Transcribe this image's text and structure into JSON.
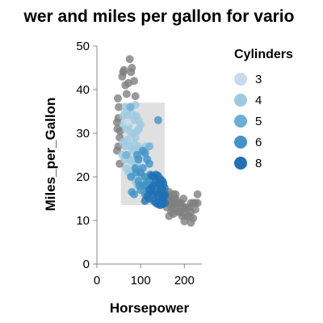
{
  "chart_data": {
    "type": "scatter",
    "title": "wer and miles per gallon for vario",
    "xlabel": "Horsepower",
    "ylabel": "Miles_per_Gallon",
    "xlim": [
      0,
      240
    ],
    "ylim": [
      0,
      50
    ],
    "xticks": [
      "0",
      "100",
      "200"
    ],
    "yticks": [
      "0",
      "10",
      "20",
      "30",
      "40",
      "50"
    ],
    "grid": false,
    "legend": {
      "title": "Cylinders",
      "placement": "right",
      "items": [
        {
          "label": "3",
          "color": "#c6dbef"
        },
        {
          "label": "4",
          "color": "#9ecae1"
        },
        {
          "label": "5",
          "color": "#6baed6"
        },
        {
          "label": "6",
          "color": "#4292c6"
        },
        {
          "label": "8",
          "color": "#2171b5"
        }
      ]
    },
    "brush_selection": {
      "x": [
        55,
        155
      ],
      "y": [
        13.5,
        37
      ],
      "color": "#e0e0e0"
    },
    "unselected_color": "#7f7f7f",
    "point_opacity": 0.8,
    "points": [
      {
        "x": 60,
        "y": 44,
        "c": 4
      },
      {
        "x": 58,
        "y": 43,
        "c": 4
      },
      {
        "x": 62,
        "y": 44.5,
        "c": 4
      },
      {
        "x": 75,
        "y": 47,
        "c": 4
      },
      {
        "x": 78,
        "y": 44,
        "c": 4
      },
      {
        "x": 80,
        "y": 45,
        "c": 4
      },
      {
        "x": 65,
        "y": 41,
        "c": 4
      },
      {
        "x": 72,
        "y": 41.5,
        "c": 4
      },
      {
        "x": 68,
        "y": 39,
        "c": 4
      },
      {
        "x": 88,
        "y": 38.5,
        "c": 4
      },
      {
        "x": 85,
        "y": 42,
        "c": 4
      },
      {
        "x": 48,
        "y": 38,
        "c": 4
      },
      {
        "x": 50,
        "y": 36,
        "c": 4
      },
      {
        "x": 46,
        "y": 32.5,
        "c": 4
      },
      {
        "x": 47,
        "y": 31,
        "c": 4
      },
      {
        "x": 49,
        "y": 33.5,
        "c": 4
      },
      {
        "x": 52,
        "y": 29,
        "c": 4
      },
      {
        "x": 49,
        "y": 27,
        "c": 4
      },
      {
        "x": 46,
        "y": 26,
        "c": 4
      },
      {
        "x": 52,
        "y": 23,
        "c": 4
      },
      {
        "x": 53,
        "y": 30.5,
        "c": 4
      },
      {
        "x": 65,
        "y": 36,
        "c": 4
      },
      {
        "x": 68,
        "y": 35,
        "c": 4
      },
      {
        "x": 70,
        "y": 34,
        "c": 4
      },
      {
        "x": 60,
        "y": 34,
        "c": 4
      },
      {
        "x": 62,
        "y": 32,
        "c": 4
      },
      {
        "x": 75,
        "y": 36,
        "c": 4
      },
      {
        "x": 80,
        "y": 34.5,
        "c": 4
      },
      {
        "x": 85,
        "y": 33,
        "c": 4
      },
      {
        "x": 88,
        "y": 36.5,
        "c": 4
      },
      {
        "x": 90,
        "y": 34,
        "c": 4
      },
      {
        "x": 95,
        "y": 33,
        "c": 4
      },
      {
        "x": 67,
        "y": 31,
        "c": 4
      },
      {
        "x": 72,
        "y": 31.5,
        "c": 4
      },
      {
        "x": 78,
        "y": 30,
        "c": 4
      },
      {
        "x": 84,
        "y": 30,
        "c": 4
      },
      {
        "x": 88,
        "y": 29,
        "c": 4
      },
      {
        "x": 92,
        "y": 30.5,
        "c": 4
      },
      {
        "x": 96,
        "y": 31,
        "c": 4
      },
      {
        "x": 100,
        "y": 32,
        "c": 4
      },
      {
        "x": 60,
        "y": 28,
        "c": 4
      },
      {
        "x": 65,
        "y": 27,
        "c": 4
      },
      {
        "x": 70,
        "y": 28.5,
        "c": 4
      },
      {
        "x": 76,
        "y": 27,
        "c": 4
      },
      {
        "x": 82,
        "y": 26,
        "c": 4
      },
      {
        "x": 86,
        "y": 27.5,
        "c": 4
      },
      {
        "x": 90,
        "y": 26,
        "c": 4
      },
      {
        "x": 95,
        "y": 27,
        "c": 4
      },
      {
        "x": 100,
        "y": 26,
        "c": 4
      },
      {
        "x": 58,
        "y": 25,
        "c": 4
      },
      {
        "x": 63,
        "y": 24,
        "c": 4
      },
      {
        "x": 69,
        "y": 25,
        "c": 4
      },
      {
        "x": 74,
        "y": 24,
        "c": 4
      },
      {
        "x": 80,
        "y": 23.5,
        "c": 4
      },
      {
        "x": 86,
        "y": 24,
        "c": 4
      },
      {
        "x": 92,
        "y": 23,
        "c": 4
      },
      {
        "x": 97,
        "y": 24,
        "c": 4
      },
      {
        "x": 67,
        "y": 22,
        "c": 4
      },
      {
        "x": 72,
        "y": 21,
        "c": 4
      },
      {
        "x": 78,
        "y": 21.5,
        "c": 4
      },
      {
        "x": 84,
        "y": 20.5,
        "c": 4
      },
      {
        "x": 90,
        "y": 21,
        "c": 4
      },
      {
        "x": 95,
        "y": 20,
        "c": 4
      },
      {
        "x": 88,
        "y": 19,
        "c": 4
      },
      {
        "x": 92,
        "y": 18,
        "c": 4
      },
      {
        "x": 110,
        "y": 25,
        "c": 4
      },
      {
        "x": 112,
        "y": 27,
        "c": 4
      },
      {
        "x": 70,
        "y": 32.5,
        "c": 3
      },
      {
        "x": 97,
        "y": 21,
        "c": 3
      },
      {
        "x": 100,
        "y": 19,
        "c": 3
      },
      {
        "x": 110,
        "y": 23.5,
        "c": 3
      },
      {
        "x": 77,
        "y": 36,
        "c": 5
      },
      {
        "x": 67,
        "y": 25,
        "c": 5
      },
      {
        "x": 103,
        "y": 20.3,
        "c": 5
      },
      {
        "x": 120,
        "y": 27,
        "c": 5
      },
      {
        "x": 85,
        "y": 16,
        "c": 6
      },
      {
        "x": 90,
        "y": 21,
        "c": 6
      },
      {
        "x": 95,
        "y": 19,
        "c": 6
      },
      {
        "x": 97,
        "y": 18,
        "c": 6
      },
      {
        "x": 100,
        "y": 17,
        "c": 6
      },
      {
        "x": 100,
        "y": 21,
        "c": 6
      },
      {
        "x": 105,
        "y": 18,
        "c": 6
      },
      {
        "x": 105,
        "y": 22,
        "c": 6
      },
      {
        "x": 110,
        "y": 20,
        "c": 6
      },
      {
        "x": 110,
        "y": 18,
        "c": 6
      },
      {
        "x": 110,
        "y": 16,
        "c": 6
      },
      {
        "x": 115,
        "y": 19,
        "c": 6
      },
      {
        "x": 115,
        "y": 17,
        "c": 6
      },
      {
        "x": 120,
        "y": 19,
        "c": 6
      },
      {
        "x": 122,
        "y": 20.5,
        "c": 6
      },
      {
        "x": 125,
        "y": 18,
        "c": 6
      },
      {
        "x": 95,
        "y": 24,
        "c": 6
      },
      {
        "x": 88,
        "y": 22,
        "c": 6
      },
      {
        "x": 78,
        "y": 20,
        "c": 6
      },
      {
        "x": 105,
        "y": 26,
        "c": 6
      },
      {
        "x": 115,
        "y": 24,
        "c": 6
      },
      {
        "x": 120,
        "y": 23,
        "c": 6
      },
      {
        "x": 110,
        "y": 25.5,
        "c": 6
      },
      {
        "x": 92,
        "y": 25,
        "c": 6
      },
      {
        "x": 140,
        "y": 33,
        "c": 6
      },
      {
        "x": 80,
        "y": 16.5,
        "c": 6
      },
      {
        "x": 130,
        "y": 18,
        "c": 8
      },
      {
        "x": 135,
        "y": 19,
        "c": 8
      },
      {
        "x": 140,
        "y": 18.5,
        "c": 8
      },
      {
        "x": 145,
        "y": 18,
        "c": 8
      },
      {
        "x": 150,
        "y": 17.5,
        "c": 8
      },
      {
        "x": 150,
        "y": 16,
        "c": 8
      },
      {
        "x": 150,
        "y": 15,
        "c": 8
      },
      {
        "x": 145,
        "y": 16.5,
        "c": 8
      },
      {
        "x": 140,
        "y": 16,
        "c": 8
      },
      {
        "x": 135,
        "y": 16.5,
        "c": 8
      },
      {
        "x": 130,
        "y": 16,
        "c": 8
      },
      {
        "x": 125,
        "y": 16.5,
        "c": 8
      },
      {
        "x": 140,
        "y": 14,
        "c": 8
      },
      {
        "x": 145,
        "y": 14.5,
        "c": 8
      },
      {
        "x": 150,
        "y": 14,
        "c": 8
      },
      {
        "x": 150,
        "y": 13.7,
        "c": 8
      },
      {
        "x": 140,
        "y": 13.7,
        "c": 8
      },
      {
        "x": 145,
        "y": 13.5,
        "c": 8
      },
      {
        "x": 130,
        "y": 14.5,
        "c": 8
      },
      {
        "x": 135,
        "y": 14,
        "c": 8
      },
      {
        "x": 150,
        "y": 19,
        "c": 8
      },
      {
        "x": 145,
        "y": 19.5,
        "c": 8
      },
      {
        "x": 125,
        "y": 20.3,
        "c": 8
      },
      {
        "x": 120,
        "y": 17,
        "c": 8
      },
      {
        "x": 120,
        "y": 15,
        "c": 8
      },
      {
        "x": 115,
        "y": 15.5,
        "c": 8
      },
      {
        "x": 110,
        "y": 14.5,
        "c": 8
      },
      {
        "x": 130,
        "y": 20,
        "c": 8
      },
      {
        "x": 140,
        "y": 20.2,
        "c": 8
      },
      {
        "x": 125,
        "y": 17.5,
        "c": 8
      },
      {
        "x": 145,
        "y": 17,
        "c": 8
      },
      {
        "x": 155,
        "y": 16,
        "c": 8
      },
      {
        "x": 155,
        "y": 14,
        "c": 8
      },
      {
        "x": 155,
        "y": 15.5,
        "c": 8
      },
      {
        "x": 155,
        "y": 17.5,
        "c": 8
      },
      {
        "x": 152,
        "y": 18.5,
        "c": 8
      },
      {
        "x": 135,
        "y": 20.5,
        "c": 8
      },
      {
        "x": 138,
        "y": 15.5,
        "c": 8
      },
      {
        "x": 160,
        "y": 16,
        "c": 8
      },
      {
        "x": 165,
        "y": 14,
        "c": 8
      },
      {
        "x": 170,
        "y": 15,
        "c": 8
      },
      {
        "x": 175,
        "y": 16,
        "c": 8
      },
      {
        "x": 180,
        "y": 13,
        "c": 8
      },
      {
        "x": 180,
        "y": 15,
        "c": 8
      },
      {
        "x": 190,
        "y": 14,
        "c": 8
      },
      {
        "x": 190,
        "y": 12,
        "c": 8
      },
      {
        "x": 193,
        "y": 14,
        "c": 8
      },
      {
        "x": 198,
        "y": 15,
        "c": 8
      },
      {
        "x": 200,
        "y": 13,
        "c": 8
      },
      {
        "x": 208,
        "y": 11,
        "c": 8
      },
      {
        "x": 210,
        "y": 13,
        "c": 8
      },
      {
        "x": 215,
        "y": 14,
        "c": 8
      },
      {
        "x": 215,
        "y": 12,
        "c": 8
      },
      {
        "x": 220,
        "y": 14,
        "c": 8
      },
      {
        "x": 225,
        "y": 14,
        "c": 8
      },
      {
        "x": 225,
        "y": 12.5,
        "c": 8
      },
      {
        "x": 230,
        "y": 16,
        "c": 8
      },
      {
        "x": 230,
        "y": 14,
        "c": 8
      },
      {
        "x": 165,
        "y": 11,
        "c": 8
      },
      {
        "x": 170,
        "y": 12,
        "c": 8
      },
      {
        "x": 175,
        "y": 11.5,
        "c": 8
      },
      {
        "x": 160,
        "y": 13,
        "c": 8
      },
      {
        "x": 175,
        "y": 13.5,
        "c": 8
      },
      {
        "x": 185,
        "y": 12,
        "c": 8
      },
      {
        "x": 195,
        "y": 11,
        "c": 8
      },
      {
        "x": 200,
        "y": 11.5,
        "c": 8
      },
      {
        "x": 220,
        "y": 10.5,
        "c": 8
      },
      {
        "x": 180,
        "y": 16,
        "c": 8
      },
      {
        "x": 165,
        "y": 16.5,
        "c": 8
      },
      {
        "x": 170,
        "y": 13,
        "c": 8
      },
      {
        "x": 158,
        "y": 14.8,
        "c": 8
      },
      {
        "x": 162,
        "y": 15.2,
        "c": 8
      },
      {
        "x": 168,
        "y": 14.6,
        "c": 8
      },
      {
        "x": 172,
        "y": 14.2,
        "c": 8
      },
      {
        "x": 178,
        "y": 14.8,
        "c": 8
      },
      {
        "x": 185,
        "y": 13.8,
        "c": 8
      },
      {
        "x": 193,
        "y": 12.6,
        "c": 8
      },
      {
        "x": 205,
        "y": 12.8,
        "c": 8
      },
      {
        "x": 212,
        "y": 10.9,
        "c": 8
      },
      {
        "x": 215,
        "y": 9.5,
        "c": 8
      },
      {
        "x": 200,
        "y": 9.8,
        "c": 8
      }
    ]
  }
}
